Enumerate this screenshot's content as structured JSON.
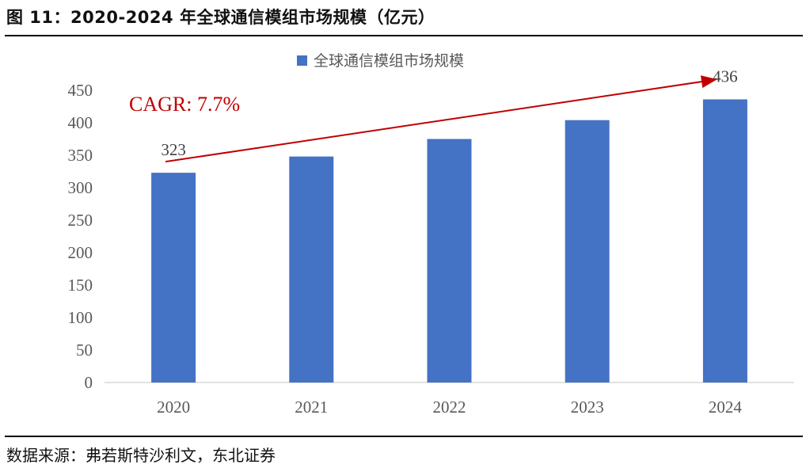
{
  "header": {
    "title": "图 11：2020-2024 年全球通信模组市场规模（亿元）"
  },
  "footer": {
    "source": "数据来源：弗若斯特沙利文，东北证券"
  },
  "chart_data": {
    "type": "bar",
    "title": "",
    "xlabel": "",
    "ylabel": "",
    "categories": [
      "2020",
      "2021",
      "2022",
      "2023",
      "2024"
    ],
    "series": [
      {
        "name": "全球通信模组市场规模",
        "values": [
          323,
          348,
          375,
          404,
          436
        ],
        "color": "#4472C4"
      }
    ],
    "ylim": [
      0,
      450
    ],
    "yticks": [
      0,
      50,
      100,
      150,
      200,
      250,
      300,
      350,
      400,
      450
    ],
    "data_labels": [
      {
        "category": "2020",
        "text": "323"
      },
      {
        "category": "2024",
        "text": "436"
      }
    ],
    "annotation": {
      "text": "CAGR: 7.7%",
      "color": "#C00000",
      "arrow_from": "2020",
      "arrow_to": "2024"
    },
    "legend": {
      "position": "top-center"
    },
    "grid": false
  }
}
